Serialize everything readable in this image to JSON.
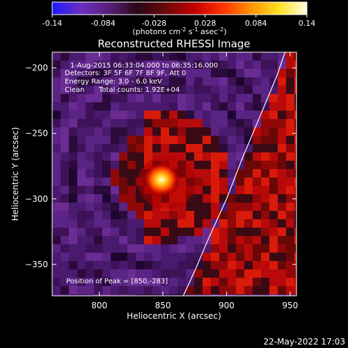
{
  "chart_data": {
    "type": "heatmap",
    "title": "Reconstructed RHESSI Image",
    "xlabel": "Heliocentric X (arcsec)",
    "ylabel": "Heliocentric Y (arcsec)",
    "xlim": [
      763,
      955
    ],
    "ylim": [
      -374,
      -188
    ],
    "x_ticks": [
      800,
      850,
      900,
      950
    ],
    "y_ticks": [
      -200,
      -250,
      -300,
      -350
    ],
    "grid": false,
    "colorbar": {
      "placement": "top",
      "range": [
        -0.14,
        0.14
      ],
      "ticks": [
        "-0.14",
        "-0.084",
        "-0.028",
        "0.028",
        "0.084",
        "0.14"
      ],
      "unit_main": "(photons cm",
      "unit_sup1": "-2",
      "unit_mid1": " s",
      "unit_sup2": "-1",
      "unit_mid2": " asec",
      "unit_sup3": "-2",
      "unit_end": ")",
      "colors": [
        "#1a1aff",
        "#6a2fc0",
        "#5a1f7a",
        "#2a0818",
        "#6a0a0a",
        "#c00000",
        "#ff3000",
        "#ff9000",
        "#ffe020",
        "#ffffe0"
      ]
    },
    "annotations": {
      "time_range": "1-Aug-2015 06:33:04.000 to 06:35:16.000",
      "detectors": "Detectors: 3F 5F 6F 7F 8F 9F, Att 0",
      "energy_range": "Energy Range: 3.0 - 6.0 keV",
      "method": "Clean",
      "total_counts": "Total counts: 1.92E+04",
      "peak_position": "Position of Peak = [850,-283]"
    },
    "peak": {
      "x": 850,
      "y": -283
    },
    "limb_points": [
      [
        866,
        -374
      ],
      [
        875,
        -355
      ],
      [
        886,
        -330
      ],
      [
        900,
        -300
      ],
      [
        912,
        -270
      ],
      [
        925,
        -240
      ],
      [
        940,
        -205
      ],
      [
        946,
        -188
      ]
    ],
    "footer_date": "22-May-2022 17:03"
  }
}
